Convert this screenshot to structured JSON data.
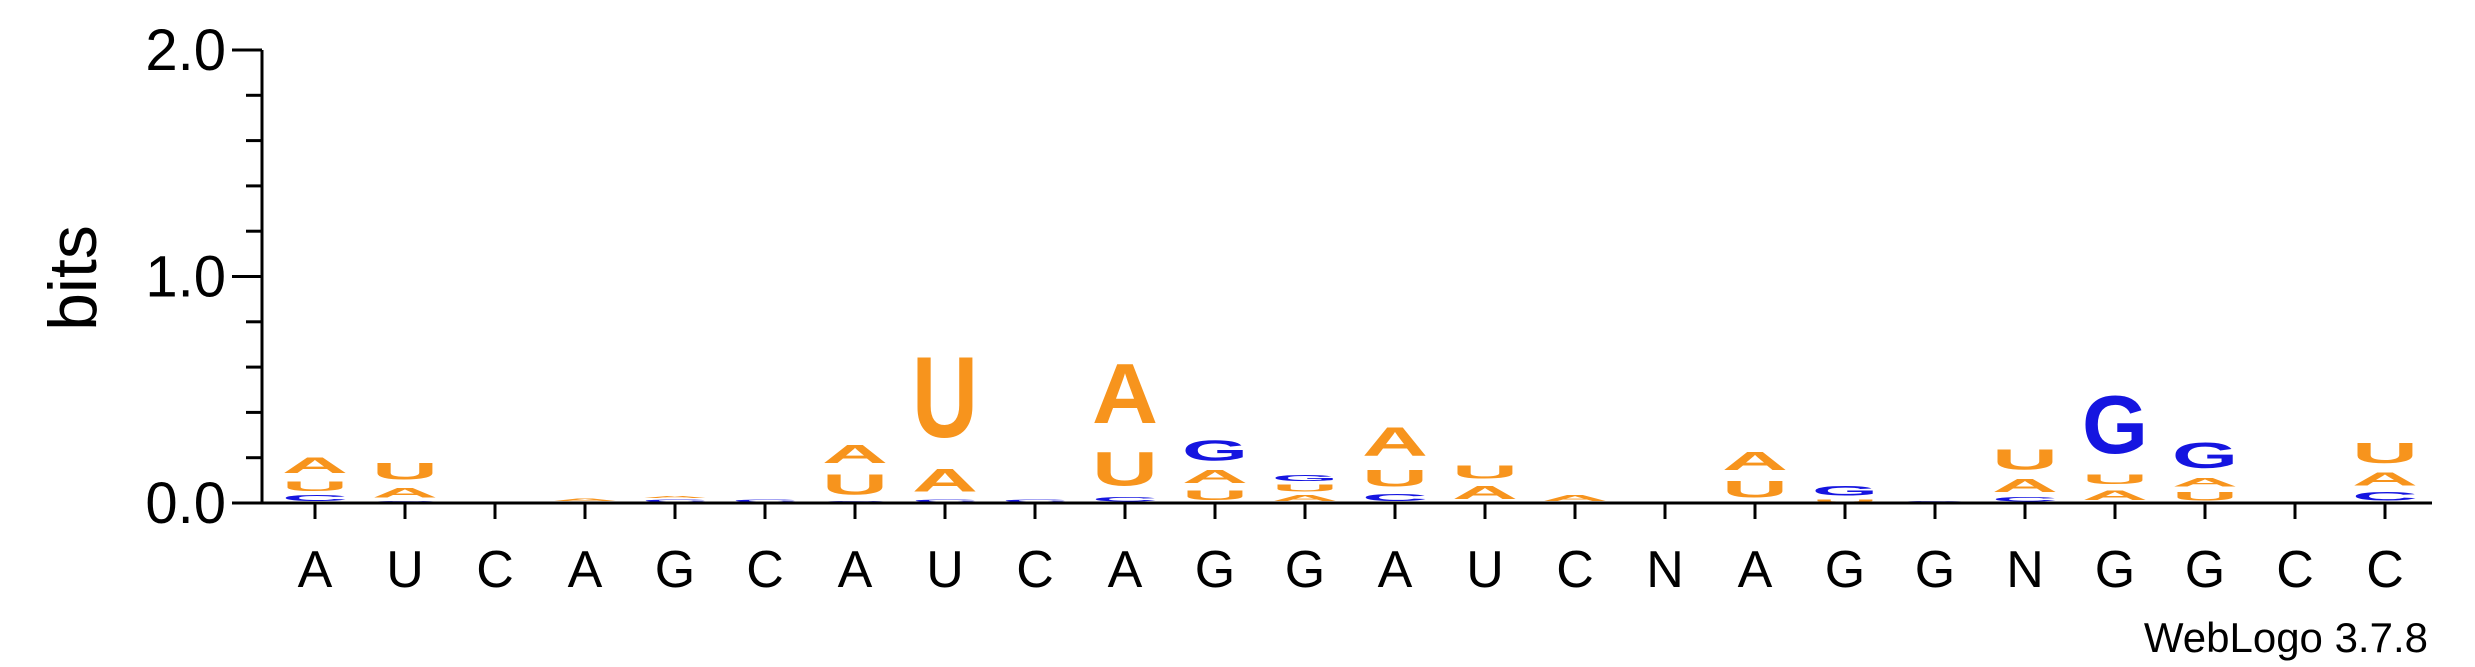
{
  "chart_data": {
    "type": "sequence-logo",
    "ylabel": "bits",
    "ylim": [
      0,
      2.0
    ],
    "yticks": [
      "0.0",
      "1.0",
      "2.0"
    ],
    "xlabels": [
      "A",
      "U",
      "C",
      "A",
      "G",
      "C",
      "A",
      "U",
      "C",
      "A",
      "G",
      "G",
      "A",
      "U",
      "C",
      "N",
      "A",
      "G",
      "G",
      "N",
      "G",
      "G",
      "C",
      "C"
    ],
    "colors": {
      "A": "#f7941d",
      "U": "#f7941d",
      "G": "#1515e0",
      "C": "#1515e0"
    },
    "columns": [
      [
        {
          "l": "C",
          "v": 0.04
        },
        {
          "l": "U",
          "v": 0.07
        },
        {
          "l": "A",
          "v": 0.11
        }
      ],
      [
        {
          "l": "C",
          "v": 0.01
        },
        {
          "l": "A",
          "v": 0.07
        },
        {
          "l": "U",
          "v": 0.12
        }
      ],
      [],
      [
        {
          "l": "C",
          "v": 0.005
        },
        {
          "l": "A",
          "v": 0.02
        }
      ],
      [
        {
          "l": "C",
          "v": 0.02
        },
        {
          "l": "A",
          "v": 0.015
        }
      ],
      [
        {
          "l": "C",
          "v": 0.02
        }
      ],
      [
        {
          "l": "C",
          "v": 0.01
        },
        {
          "l": "U",
          "v": 0.14
        },
        {
          "l": "A",
          "v": 0.13
        }
      ],
      [
        {
          "l": "C",
          "v": 0.02
        },
        {
          "l": "A",
          "v": 0.16
        },
        {
          "l": "U",
          "v": 0.57
        }
      ],
      [
        {
          "l": "C",
          "v": 0.02
        }
      ],
      [
        {
          "l": "C",
          "v": 0.03
        },
        {
          "l": "U",
          "v": 0.24
        },
        {
          "l": "A",
          "v": 0.42
        }
      ],
      [
        {
          "l": "U",
          "v": 0.07
        },
        {
          "l": "A",
          "v": 0.09
        },
        {
          "l": "G",
          "v": 0.14
        }
      ],
      [
        {
          "l": "A",
          "v": 0.04
        },
        {
          "l": "U",
          "v": 0.05
        },
        {
          "l": "G",
          "v": 0.04
        }
      ],
      [
        {
          "l": "C",
          "v": 0.05
        },
        {
          "l": "U",
          "v": 0.12
        },
        {
          "l": "A",
          "v": 0.2
        }
      ],
      [
        {
          "l": "A",
          "v": 0.09
        },
        {
          "l": "U",
          "v": 0.09
        }
      ],
      [
        {
          "l": "A",
          "v": 0.04
        }
      ],
      [],
      [
        {
          "l": "U",
          "v": 0.12
        },
        {
          "l": "A",
          "v": 0.13
        }
      ],
      [
        {
          "l": "U",
          "v": 0.02
        },
        {
          "l": "G",
          "v": 0.07
        }
      ],
      [
        {
          "l": "G",
          "v": 0.01
        }
      ],
      [
        {
          "l": "C",
          "v": 0.03
        },
        {
          "l": "A",
          "v": 0.09
        },
        {
          "l": "U",
          "v": 0.14
        }
      ],
      [
        {
          "l": "A",
          "v": 0.07
        },
        {
          "l": "U",
          "v": 0.07
        },
        {
          "l": "G",
          "v": 0.41
        }
      ],
      [
        {
          "l": "U",
          "v": 0.06
        },
        {
          "l": "A",
          "v": 0.06
        },
        {
          "l": "G",
          "v": 0.18
        }
      ],
      [],
      [
        {
          "l": "C",
          "v": 0.06
        },
        {
          "l": "A",
          "v": 0.09
        },
        {
          "l": "U",
          "v": 0.14
        }
      ]
    ]
  },
  "footer": {
    "credit": "WebLogo 3.7.8"
  }
}
